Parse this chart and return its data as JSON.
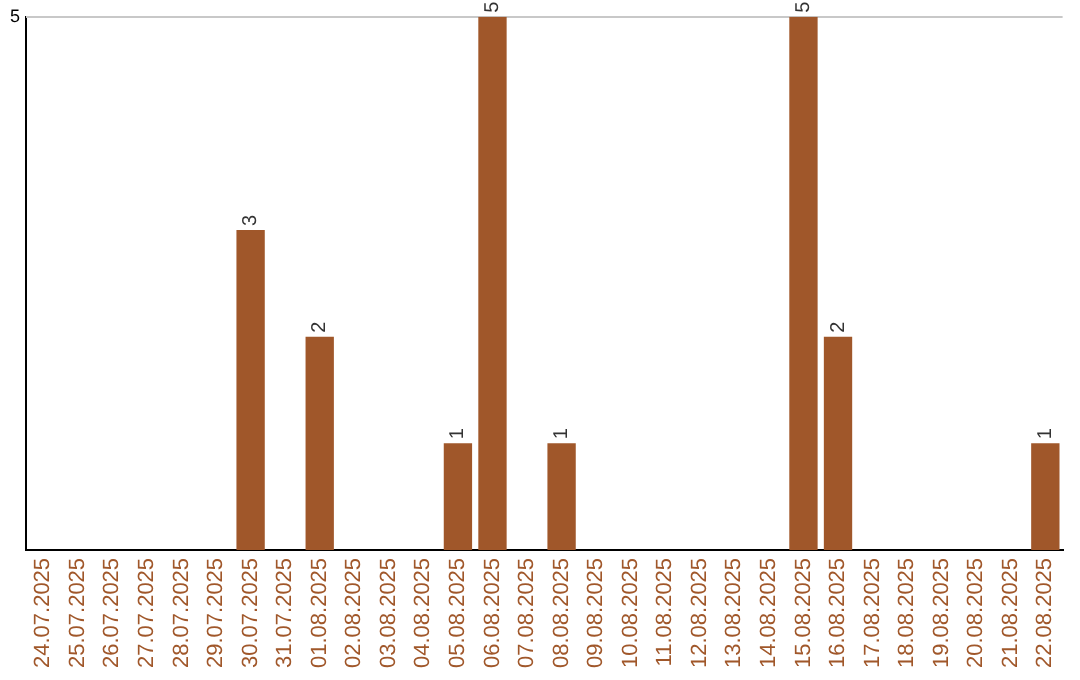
{
  "chart_data": {
    "type": "bar",
    "categories": [
      "24.07.2025",
      "25.07.2025",
      "26.07.2025",
      "27.07.2025",
      "28.07.2025",
      "29.07.2025",
      "30.07.2025",
      "31.07.2025",
      "01.08.2025",
      "02.08.2025",
      "03.08.2025",
      "04.08.2025",
      "05.08.2025",
      "06.08.2025",
      "07.08.2025",
      "08.08.2025",
      "09.08.2025",
      "10.08.2025",
      "11.08.2025",
      "12.08.2025",
      "13.08.2025",
      "14.08.2025",
      "15.08.2025",
      "16.08.2025",
      "17.08.2025",
      "18.08.2025",
      "19.08.2025",
      "20.08.2025",
      "21.08.2025",
      "22.08.2025"
    ],
    "values": [
      0,
      0,
      0,
      0,
      0,
      0,
      3,
      0,
      2,
      0,
      0,
      0,
      1,
      5,
      0,
      1,
      0,
      0,
      0,
      0,
      0,
      0,
      5,
      2,
      0,
      0,
      0,
      0,
      0,
      1
    ],
    "color": "#a0572a",
    "value_labels": [
      null,
      null,
      null,
      null,
      null,
      null,
      "3",
      null,
      "2",
      null,
      null,
      null,
      "1",
      "5",
      null,
      "1",
      null,
      null,
      null,
      null,
      null,
      null,
      "5",
      "2",
      null,
      null,
      null,
      null,
      null,
      "1"
    ],
    "ylim": [
      0,
      5
    ],
    "yticks": [
      5
    ],
    "ref_lines": [
      {
        "axis": "y",
        "value": 5,
        "color": "#c8c8c8"
      }
    ],
    "legend": false
  }
}
